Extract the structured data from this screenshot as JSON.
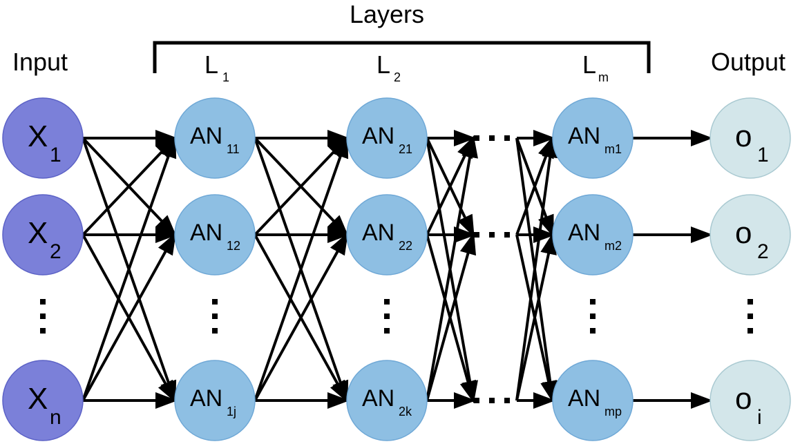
{
  "headers": {
    "layers": "Layers",
    "input": "Input",
    "output": "Output"
  },
  "layer_labels": [
    {
      "main": "L",
      "sub": "1"
    },
    {
      "main": "L",
      "sub": "2"
    },
    {
      "main": "L",
      "sub": "m"
    }
  ],
  "columns": [
    {
      "id": "input",
      "fill": "#7b80d9",
      "nodes": [
        {
          "main": "X",
          "sub": "1"
        },
        {
          "main": "X",
          "sub": "2"
        },
        {
          "main": "X",
          "sub": "n"
        }
      ]
    },
    {
      "id": "layer1",
      "fill": "#8ebfe3",
      "nodes": [
        {
          "main": "AN",
          "sub": "11"
        },
        {
          "main": "AN",
          "sub": "12"
        },
        {
          "main": "AN",
          "sub": "1j"
        }
      ]
    },
    {
      "id": "layer2",
      "fill": "#8ebfe3",
      "nodes": [
        {
          "main": "AN",
          "sub": "21"
        },
        {
          "main": "AN",
          "sub": "22"
        },
        {
          "main": "AN",
          "sub": "2k"
        }
      ]
    },
    {
      "id": "layerm",
      "fill": "#8ebfe3",
      "nodes": [
        {
          "main": "AN",
          "sub": "m1"
        },
        {
          "main": "AN",
          "sub": "m2"
        },
        {
          "main": "AN",
          "sub": "mp"
        }
      ]
    },
    {
      "id": "output",
      "fill": "#d3e6ea",
      "nodes": [
        {
          "main": "o",
          "sub": "1"
        },
        {
          "main": "o",
          "sub": "2"
        },
        {
          "main": "o",
          "sub": "i"
        }
      ]
    }
  ],
  "colors": {
    "stroke": "#000000",
    "input_border": "#5c62c6",
    "hidden_border": "#6fa8d6",
    "output_border": "#a9c9d1"
  }
}
